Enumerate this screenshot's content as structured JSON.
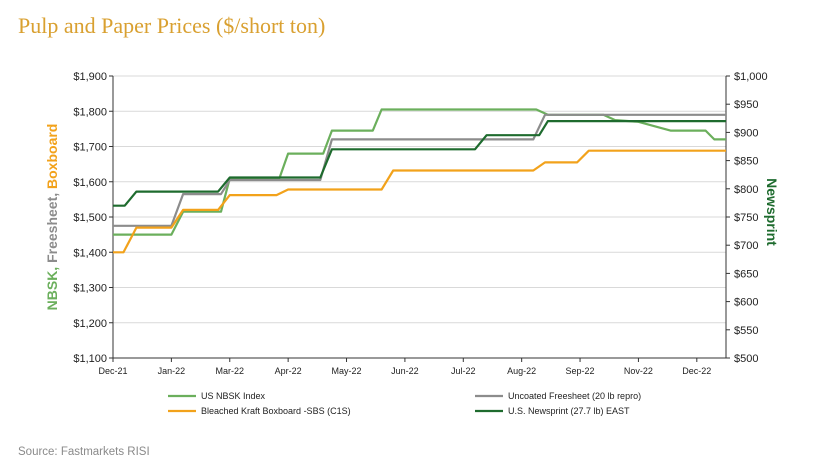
{
  "title": "Pulp and Paper Prices ($/short ton)",
  "source": "Source:  Fastmarkets RISI",
  "colors": {
    "title": "#D9A030",
    "nbsk": "#6BAF5C",
    "freesheet": "#8C8C8C",
    "boxboard": "#F2A21B",
    "newsprint": "#1E6B2E"
  },
  "chart_data": {
    "type": "line",
    "title": "Pulp and Paper Prices ($/short ton)",
    "x_tick_labels": [
      "Dec-21",
      "Jan-22",
      "Mar-22",
      "Apr-22",
      "May-22",
      "Jun-22",
      "Jul-22",
      "Aug-22",
      "Sep-22",
      "Nov-22",
      "Dec-22"
    ],
    "x_tick_positions": [
      0,
      1,
      2,
      3,
      4,
      5,
      6,
      7,
      8,
      9,
      10
    ],
    "xlim": [
      0,
      10.5
    ],
    "y_left": {
      "label_parts": [
        {
          "text": "NBSK, ",
          "color": "#6BAF5C"
        },
        {
          "text": "Freesheet, ",
          "color": "#8C8C8C"
        },
        {
          "text": "Boxboard",
          "color": "#F2A21B"
        }
      ],
      "ylim": [
        1100,
        1900
      ],
      "tick_labels": [
        "$1,100",
        "$1,200",
        "$1,300",
        "$1,400",
        "$1,500",
        "$1,600",
        "$1,700",
        "$1,800",
        "$1,900"
      ]
    },
    "y_right": {
      "label": "Newsprint",
      "label_color": "#1E6B2E",
      "ylim": [
        500,
        1000
      ],
      "tick_labels": [
        "$500",
        "$550",
        "$600",
        "$650",
        "$700",
        "$750",
        "$800",
        "$850",
        "$900",
        "$950",
        "$1,000"
      ]
    },
    "series": [
      {
        "name": "US NBSK Index",
        "axis": "left",
        "color": "#6BAF5C",
        "x": [
          0,
          1,
          1.2,
          1.85,
          2.0,
          2.85,
          3.0,
          3.6,
          3.75,
          4.45,
          4.6,
          5.6,
          7.25,
          7.45,
          8.4,
          8.6,
          9.0,
          9.55,
          10.15,
          10.3,
          10.5
        ],
        "y": [
          1450,
          1450,
          1515,
          1515,
          1610,
          1610,
          1680,
          1680,
          1745,
          1745,
          1805,
          1805,
          1805,
          1790,
          1790,
          1775,
          1770,
          1745,
          1745,
          1720,
          1720
        ]
      },
      {
        "name": "Uncoated Freesheet (20 lb repro)",
        "axis": "left",
        "color": "#8C8C8C",
        "x": [
          0,
          1,
          1.2,
          1.85,
          2.0,
          3.55,
          3.75,
          7.2,
          7.4,
          10.5
        ],
        "y": [
          1475,
          1475,
          1565,
          1565,
          1605,
          1605,
          1720,
          1720,
          1790,
          1790
        ]
      },
      {
        "name": "Bleached Kraft Boxboard -SBS (C1S)",
        "axis": "left",
        "color": "#F2A21B",
        "x": [
          0,
          0.18,
          0.4,
          1.0,
          1.2,
          1.8,
          2.0,
          2.8,
          3.0,
          4.6,
          4.8,
          7.2,
          7.4,
          7.95,
          8.15,
          10.5
        ],
        "y": [
          1400,
          1400,
          1470,
          1470,
          1520,
          1520,
          1562,
          1562,
          1578,
          1578,
          1632,
          1632,
          1655,
          1655,
          1688,
          1688
        ]
      },
      {
        "name": "U.S. Newsprint (27.7 lb) EAST",
        "axis": "right",
        "color": "#1E6B2E",
        "x": [
          0,
          0.2,
          0.4,
          1.8,
          2.0,
          3.55,
          3.75,
          6.2,
          6.4,
          7.3,
          7.45,
          10.5
        ],
        "y": [
          770,
          770,
          795,
          795,
          820,
          820,
          870,
          870,
          895,
          895,
          920,
          920
        ]
      }
    ],
    "legend": [
      {
        "label": "US NBSK Index",
        "color": "#6BAF5C"
      },
      {
        "label": "Uncoated Freesheet (20 lb repro)",
        "color": "#8C8C8C"
      },
      {
        "label": "Bleached Kraft Boxboard -SBS (C1S)",
        "color": "#F2A21B"
      },
      {
        "label": "U.S. Newsprint (27.7 lb) EAST",
        "color": "#1E6B2E"
      }
    ],
    "grid": true
  }
}
